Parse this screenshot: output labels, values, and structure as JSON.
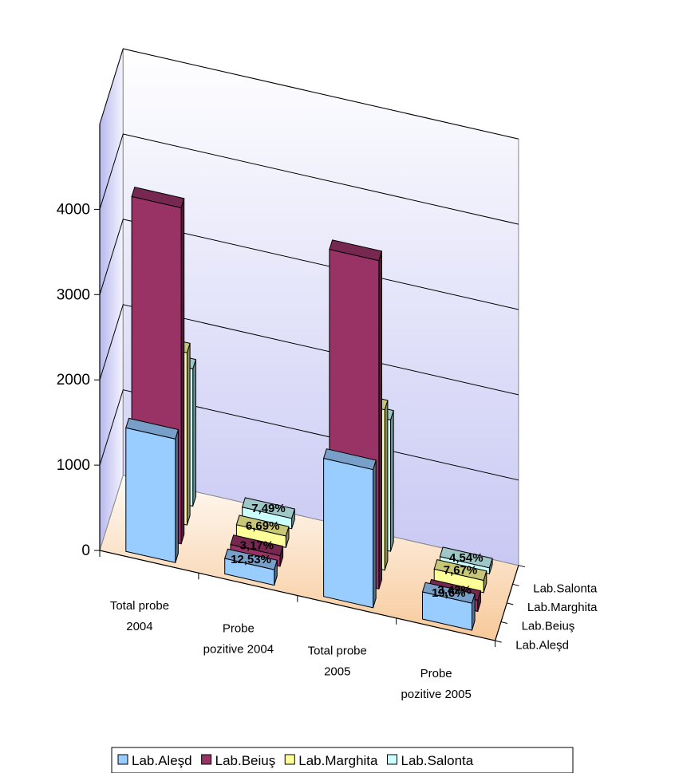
{
  "chart_data": {
    "type": "bar",
    "subtype": "3d-column",
    "categories": [
      "Total probe 2004",
      "Probe pozitive 2004",
      "Total probe 2005",
      "Probe pozitive 2005"
    ],
    "category_label_lines": [
      [
        "Total probe",
        "2004"
      ],
      [
        "Probe",
        "pozitive 2004"
      ],
      [
        "Total probe",
        "2005"
      ],
      [
        "Probe",
        "pozitive 2005"
      ]
    ],
    "series": [
      {
        "name": "Lab.Aleşd",
        "values": [
          1450,
          182,
          1620,
          318
        ],
        "labels": [
          "",
          "12,53%",
          "",
          "19,6%"
        ],
        "color": "#99CCFF"
      },
      {
        "name": "Lab.Beiuş",
        "values": [
          3940,
          125,
          3850,
          132
        ],
        "labels": [
          "",
          "3,17%",
          "",
          "3,42%"
        ],
        "color": "#993366"
      },
      {
        "name": "Lab.Marghita",
        "values": [
          2020,
          135,
          1880,
          144
        ],
        "labels": [
          "",
          "6,69%",
          "",
          "7,67%"
        ],
        "color": "#FFFF99"
      },
      {
        "name": "Lab.Salonta",
        "values": [
          1610,
          121,
          1540,
          70
        ],
        "labels": [
          "",
          "7,49%",
          "",
          "4,54%"
        ],
        "color": "#CCFFFF"
      }
    ],
    "yticks": [
      "0",
      "1000",
      "2000",
      "3000",
      "4000"
    ],
    "ylim": [
      0,
      5000
    ],
    "grid": true,
    "legend_position": "bottom"
  }
}
